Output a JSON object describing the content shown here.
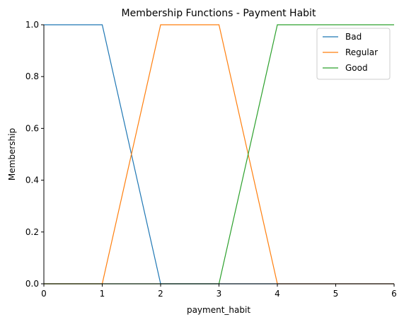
{
  "chart_data": {
    "type": "line",
    "title": "Membership Functions - Payment Habit",
    "xlabel": "payment_habit",
    "ylabel": "Membership",
    "xlim": [
      0,
      6
    ],
    "ylim": [
      0,
      1.0
    ],
    "xticks": [
      0,
      1,
      2,
      3,
      4,
      5,
      6
    ],
    "xtick_labels": [
      "0",
      "1",
      "2",
      "3",
      "4",
      "5",
      "6"
    ],
    "yticks": [
      0,
      0.2,
      0.4,
      0.6,
      0.8,
      1.0
    ],
    "ytick_labels": [
      "0.0",
      "0.2",
      "0.4",
      "0.6",
      "0.8",
      "1.0"
    ],
    "grid": false,
    "legend_position": "top-right",
    "series": [
      {
        "name": "Bad",
        "color": "#1f77b4",
        "x": [
          0,
          1,
          2,
          6
        ],
        "y": [
          1,
          1,
          0,
          0
        ]
      },
      {
        "name": "Regular",
        "color": "#ff7f0e",
        "x": [
          0,
          1,
          2,
          3,
          4,
          6
        ],
        "y": [
          0,
          0,
          1,
          1,
          0,
          0
        ]
      },
      {
        "name": "Good",
        "color": "#2ca02c",
        "x": [
          0,
          3,
          4,
          6
        ],
        "y": [
          0,
          0,
          1,
          1
        ]
      }
    ]
  }
}
